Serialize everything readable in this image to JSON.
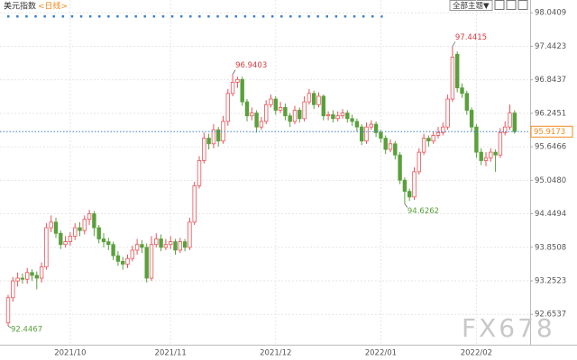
{
  "chart_data": {
    "type": "candlestick",
    "title": "美元指数",
    "subtitle": "<日线>",
    "toolbar": "全部主题▼",
    "watermark": "FX678",
    "up_color": "#e8535a",
    "down_color": "#5aa03c",
    "grid": true,
    "ylim": [
      92.11,
      98.27
    ],
    "yticks": [
      92.6537,
      93.2523,
      93.8508,
      94.4494,
      {
        "value": 95.048,
        "label": "95.0480"
      },
      95.6466,
      96.2451,
      96.8437,
      97.4423,
      98.0409
    ],
    "categories": [
      null,
      null,
      null,
      null,
      null,
      null,
      null,
      null,
      null,
      null,
      null,
      null,
      null,
      "2021/10",
      null,
      null,
      null,
      null,
      null,
      null,
      null,
      null,
      null,
      null,
      null,
      null,
      null,
      null,
      null,
      null,
      null,
      null,
      null,
      null,
      "2021/11",
      null,
      null,
      null,
      null,
      null,
      null,
      null,
      null,
      null,
      null,
      null,
      null,
      null,
      null,
      null,
      null,
      null,
      null,
      null,
      null,
      null,
      "2021/12",
      null,
      null,
      null,
      null,
      null,
      null,
      null,
      null,
      null,
      null,
      null,
      null,
      null,
      null,
      null,
      null,
      null,
      null,
      null,
      null,
      null,
      "2022/01",
      null,
      null,
      null,
      null,
      null,
      null,
      null,
      null,
      null,
      null,
      null,
      null,
      null,
      null,
      null,
      null,
      null,
      null,
      null,
      "2022/02",
      null,
      null,
      null,
      null,
      null,
      null,
      null,
      null
    ],
    "open": [
      92.5,
      92.95,
      93.25,
      93.3,
      93.28,
      93.4,
      93.35,
      93.3,
      93.5,
      94.2,
      94.3,
      94.1,
      93.9,
      93.95,
      94.05,
      94.2,
      94.15,
      94.35,
      94.45,
      94.2,
      94.0,
      93.95,
      93.9,
      93.7,
      93.6,
      93.55,
      93.65,
      93.8,
      93.9,
      93.85,
      93.3,
      93.9,
      94.0,
      93.85,
      93.9,
      93.95,
      93.8,
      93.95,
      93.85,
      94.3,
      94.95,
      95.4,
      95.8,
      95.7,
      95.95,
      95.75,
      96.1,
      96.6,
      96.8,
      96.85,
      96.45,
      96.2,
      96.25,
      96.0,
      96.1,
      96.4,
      96.5,
      96.3,
      96.35,
      96.2,
      96.1,
      96.3,
      96.15,
      96.45,
      96.6,
      96.4,
      96.55,
      96.2,
      96.22,
      96.15,
      96.2,
      96.25,
      96.15,
      96.1,
      96.0,
      95.75,
      96.0,
      96.05,
      95.9,
      95.8,
      95.6,
      95.7,
      95.5,
      95.05,
      94.85,
      94.75,
      95.2,
      95.55,
      95.8,
      95.75,
      95.85,
      95.9,
      96.0,
      96.5,
      97.3,
      96.7,
      96.6,
      96.3,
      96.0,
      95.55,
      95.4,
      95.45,
      95.55,
      95.5,
      95.9,
      96.0,
      96.25
    ],
    "high": [
      93.0,
      93.32,
      93.4,
      93.38,
      93.48,
      93.46,
      93.42,
      93.58,
      94.28,
      94.42,
      94.38,
      94.15,
      94.05,
      94.12,
      94.28,
      94.3,
      94.42,
      94.52,
      94.5,
      94.25,
      94.1,
      94.02,
      93.95,
      93.78,
      93.68,
      93.72,
      93.88,
      94.0,
      93.98,
      93.92,
      94.05,
      94.1,
      94.08,
      94.0,
      94.05,
      94.0,
      94.02,
      94.0,
      94.38,
      95.02,
      95.48,
      95.9,
      95.88,
      96.05,
      96.0,
      96.2,
      96.68,
      96.9403,
      96.9,
      96.9,
      96.5,
      96.35,
      96.3,
      96.18,
      96.48,
      96.58,
      96.55,
      96.45,
      96.42,
      96.25,
      96.38,
      96.35,
      96.55,
      96.68,
      96.65,
      96.62,
      96.58,
      96.28,
      96.3,
      96.28,
      96.32,
      96.3,
      96.22,
      96.15,
      96.05,
      96.08,
      96.12,
      96.1,
      95.95,
      95.85,
      95.78,
      95.75,
      95.55,
      95.1,
      94.9,
      95.28,
      95.62,
      95.88,
      95.85,
      95.92,
      96.0,
      96.08,
      96.58,
      97.4415,
      97.35,
      96.78,
      96.65,
      96.35,
      96.05,
      95.62,
      95.55,
      95.62,
      95.6,
      95.98,
      96.1,
      96.4,
      96.3
    ],
    "low": [
      92.4467,
      92.88,
      93.15,
      93.2,
      93.2,
      93.25,
      93.1,
      93.22,
      93.45,
      94.12,
      94.02,
      93.82,
      93.85,
      93.88,
      93.98,
      94.05,
      94.08,
      94.25,
      94.05,
      93.92,
      93.85,
      93.8,
      93.62,
      93.52,
      93.45,
      93.48,
      93.6,
      93.72,
      93.75,
      93.22,
      93.25,
      93.85,
      93.78,
      93.8,
      93.82,
      93.72,
      93.75,
      93.78,
      93.8,
      94.25,
      94.9,
      95.35,
      95.6,
      95.62,
      95.65,
      95.7,
      96.02,
      96.55,
      96.7,
      96.38,
      96.1,
      96.12,
      95.9,
      95.95,
      96.05,
      96.35,
      96.22,
      96.25,
      96.12,
      96.0,
      96.05,
      96.08,
      96.1,
      96.4,
      96.32,
      96.35,
      96.12,
      96.12,
      96.08,
      96.1,
      96.15,
      96.08,
      96.02,
      95.92,
      95.68,
      95.7,
      95.95,
      95.82,
      95.72,
      95.52,
      95.55,
      95.42,
      94.98,
      94.6262,
      94.68,
      94.7,
      95.15,
      95.5,
      95.65,
      95.7,
      95.8,
      95.85,
      95.95,
      96.45,
      96.62,
      96.52,
      96.22,
      95.92,
      95.45,
      95.32,
      95.3,
      95.38,
      95.2,
      95.45,
      95.85,
      95.95,
      95.88
    ],
    "close": [
      92.95,
      93.25,
      93.3,
      93.28,
      93.4,
      93.35,
      93.3,
      93.5,
      94.2,
      94.3,
      94.1,
      93.9,
      93.95,
      94.05,
      94.2,
      94.15,
      94.35,
      94.45,
      94.2,
      94.0,
      93.95,
      93.9,
      93.7,
      93.6,
      93.55,
      93.65,
      93.8,
      93.9,
      93.85,
      93.3,
      93.9,
      94.0,
      93.85,
      93.9,
      93.95,
      93.8,
      93.95,
      93.85,
      94.3,
      94.95,
      95.4,
      95.8,
      95.7,
      95.95,
      95.75,
      96.1,
      96.6,
      96.8,
      96.85,
      96.45,
      96.2,
      96.25,
      96.0,
      96.1,
      96.4,
      96.5,
      96.3,
      96.35,
      96.2,
      96.1,
      96.3,
      96.15,
      96.45,
      96.6,
      96.4,
      96.55,
      96.2,
      96.22,
      96.15,
      96.2,
      96.25,
      96.15,
      96.1,
      96.0,
      95.75,
      96.0,
      96.05,
      95.9,
      95.8,
      95.6,
      95.7,
      95.5,
      95.05,
      94.85,
      94.75,
      95.2,
      95.55,
      95.8,
      95.75,
      95.85,
      95.9,
      96.0,
      96.5,
      97.25,
      96.7,
      96.6,
      96.3,
      96.0,
      95.55,
      95.4,
      95.45,
      95.55,
      95.5,
      95.9,
      96.0,
      96.25,
      95.9173
    ]
  }
}
